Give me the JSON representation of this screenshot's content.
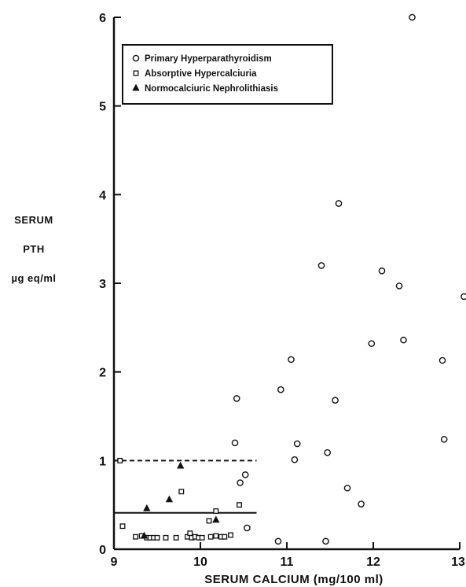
{
  "chart_data": {
    "type": "scatter",
    "xlabel": "SERUM CALCIUM (mg/100 ml)",
    "ylabel_lines": [
      "SERUM",
      "PTH",
      "µg eq/ml"
    ],
    "xlim": [
      9,
      13
    ],
    "ylim": [
      0,
      6
    ],
    "xticks": [
      "9",
      "10",
      "11",
      "12",
      "13"
    ],
    "yticks": [
      "0",
      "1",
      "2",
      "3",
      "4",
      "5",
      "6"
    ],
    "legend_position": "top-left",
    "series": [
      {
        "name": "Primary Hyperparathyroidism",
        "marker": "circle",
        "points": [
          [
            12.45,
            6.0
          ],
          [
            11.6,
            3.9
          ],
          [
            11.4,
            3.2
          ],
          [
            12.1,
            3.14
          ],
          [
            12.3,
            2.97
          ],
          [
            13.05,
            2.85
          ],
          [
            12.35,
            2.36
          ],
          [
            11.98,
            2.32
          ],
          [
            12.8,
            2.13
          ],
          [
            11.05,
            2.14
          ],
          [
            10.93,
            1.8
          ],
          [
            10.42,
            1.7
          ],
          [
            11.56,
            1.68
          ],
          [
            12.82,
            1.24
          ],
          [
            10.4,
            1.2
          ],
          [
            11.12,
            1.19
          ],
          [
            11.47,
            1.09
          ],
          [
            11.09,
            1.01
          ],
          [
            10.52,
            0.84
          ],
          [
            10.46,
            0.75
          ],
          [
            11.7,
            0.69
          ],
          [
            11.86,
            0.51
          ],
          [
            10.54,
            0.24
          ],
          [
            10.9,
            0.09
          ],
          [
            11.45,
            0.09
          ]
        ]
      },
      {
        "name": "Absorptive Hypercalciuria",
        "marker": "square",
        "points": [
          [
            9.07,
            1.0
          ],
          [
            9.78,
            0.65
          ],
          [
            10.45,
            0.5
          ],
          [
            10.18,
            0.43
          ],
          [
            10.1,
            0.32
          ],
          [
            9.1,
            0.26
          ],
          [
            9.25,
            0.14
          ],
          [
            9.32,
            0.15
          ],
          [
            9.38,
            0.13
          ],
          [
            9.42,
            0.13
          ],
          [
            9.46,
            0.13
          ],
          [
            9.5,
            0.13
          ],
          [
            9.6,
            0.13
          ],
          [
            9.72,
            0.13
          ],
          [
            9.85,
            0.14
          ],
          [
            9.88,
            0.18
          ],
          [
            9.9,
            0.13
          ],
          [
            9.94,
            0.14
          ],
          [
            9.98,
            0.13
          ],
          [
            10.02,
            0.13
          ],
          [
            10.12,
            0.14
          ],
          [
            10.18,
            0.15
          ],
          [
            10.24,
            0.14
          ],
          [
            10.28,
            0.14
          ],
          [
            10.35,
            0.16
          ]
        ]
      },
      {
        "name": "Normocalciuric Nephrolithiasis",
        "marker": "triangle",
        "points": [
          [
            9.77,
            0.94
          ],
          [
            9.64,
            0.56
          ],
          [
            9.38,
            0.46
          ],
          [
            10.18,
            0.33
          ],
          [
            9.35,
            0.15
          ]
        ]
      }
    ],
    "reference_lines": [
      {
        "style": "dashed",
        "y": 1.0,
        "x_range": [
          9,
          10.65
        ]
      },
      {
        "style": "solid",
        "y": 0.41,
        "x_range": [
          9,
          10.65
        ]
      }
    ]
  }
}
